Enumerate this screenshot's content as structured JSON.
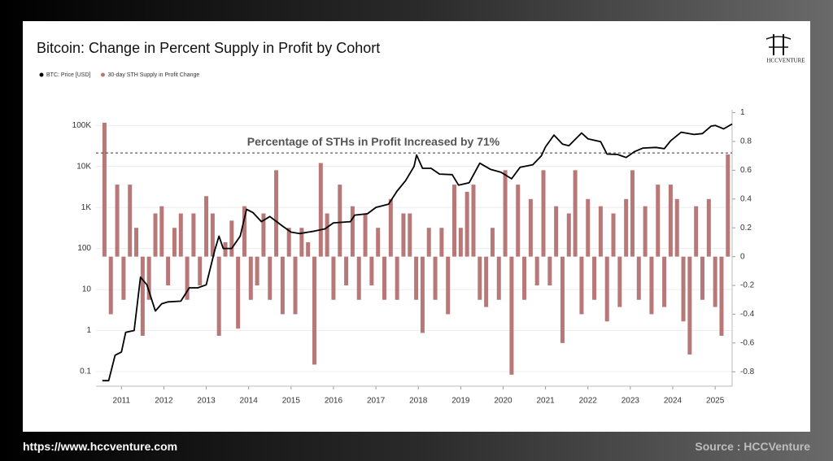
{
  "logo": "HCCVENTURE",
  "footer": {
    "url": "https://www.hccventure.com",
    "source": "Source : HCCVenture"
  },
  "chart_data": {
    "type": "combo",
    "title": "Bitcoin: Change in Percent Supply in Profit by Cohort",
    "annotation": "Percentage of STHs in Profit Increased by 71%",
    "reference_line": {
      "value": 0.72,
      "axis": "y2"
    },
    "legend": "top-left",
    "grid": true,
    "ylog": true,
    "xlim": [
      2010.4,
      2025.4
    ],
    "xticks": [
      2011,
      2012,
      2013,
      2014,
      2015,
      2016,
      2017,
      2018,
      2019,
      2020,
      2021,
      2022,
      2023,
      2024,
      2025
    ],
    "ylim": [
      0.044,
      240000
    ],
    "yticks": [
      0.1,
      1,
      10,
      100,
      {
        "value": 1000,
        "label": "1K"
      },
      {
        "value": 10000,
        "label": "10K"
      },
      {
        "value": 100000,
        "label": "100K"
      }
    ],
    "y2lim": [
      -0.9,
      1.02
    ],
    "y2ticks": [
      -0.8,
      -0.6,
      -0.4,
      -0.2,
      0,
      0.2,
      0.4,
      0.6,
      0.8,
      1
    ],
    "series": [
      {
        "name": "BTC: Price [USD]",
        "type": "line",
        "color": "#000000",
        "x": [
          2010.55,
          2010.7,
          2010.85,
          2011.0,
          2011.1,
          2011.3,
          2011.45,
          2011.6,
          2011.8,
          2011.95,
          2012.1,
          2012.4,
          2012.6,
          2012.8,
          2013.0,
          2013.2,
          2013.3,
          2013.4,
          2013.6,
          2013.8,
          2013.95,
          2014.1,
          2014.3,
          2014.5,
          2014.8,
          2015.0,
          2015.2,
          2015.5,
          2015.8,
          2016.0,
          2016.4,
          2016.5,
          2016.8,
          2017.0,
          2017.3,
          2017.5,
          2017.7,
          2017.9,
          2017.96,
          2018.1,
          2018.3,
          2018.5,
          2018.8,
          2018.95,
          2019.2,
          2019.45,
          2019.7,
          2019.95,
          2020.2,
          2020.4,
          2020.7,
          2020.9,
          2021.0,
          2021.2,
          2021.4,
          2021.55,
          2021.85,
          2022.0,
          2022.3,
          2022.45,
          2022.7,
          2022.9,
          2023.1,
          2023.3,
          2023.6,
          2023.8,
          2023.95,
          2024.2,
          2024.5,
          2024.7,
          2024.9,
          2025.0,
          2025.2,
          2025.4
        ],
        "values": [
          0.06,
          0.06,
          0.25,
          0.3,
          0.9,
          1.0,
          20,
          13,
          3,
          4.5,
          5,
          5.2,
          11,
          11,
          13,
          90,
          200,
          100,
          100,
          200,
          900,
          750,
          450,
          600,
          350,
          250,
          230,
          260,
          300,
          420,
          450,
          650,
          700,
          1000,
          1200,
          2500,
          4500,
          10000,
          19000,
          9000,
          9000,
          6500,
          6300,
          3500,
          4000,
          12000,
          8500,
          7200,
          5000,
          9500,
          11000,
          18000,
          30000,
          58000,
          35000,
          32000,
          65000,
          47000,
          40000,
          20000,
          19500,
          16500,
          23000,
          28000,
          29000,
          27000,
          42000,
          68000,
          60000,
          63000,
          95000,
          100000,
          82000,
          108000
        ]
      },
      {
        "name": "30-day STH Supply in Profit Change",
        "type": "bar",
        "axis": "y2",
        "color": "#b87878",
        "x": [
          2010.6,
          2010.75,
          2010.9,
          2011.05,
          2011.2,
          2011.35,
          2011.5,
          2011.65,
          2011.8,
          2011.95,
          2012.1,
          2012.25,
          2012.4,
          2012.55,
          2012.7,
          2012.85,
          2013.0,
          2013.15,
          2013.3,
          2013.45,
          2013.6,
          2013.75,
          2013.9,
          2014.05,
          2014.2,
          2014.35,
          2014.5,
          2014.65,
          2014.8,
          2014.95,
          2015.1,
          2015.25,
          2015.4,
          2015.55,
          2015.7,
          2015.85,
          2016.0,
          2016.15,
          2016.3,
          2016.45,
          2016.6,
          2016.75,
          2016.9,
          2017.05,
          2017.2,
          2017.35,
          2017.5,
          2017.65,
          2017.8,
          2017.95,
          2018.1,
          2018.25,
          2018.4,
          2018.55,
          2018.7,
          2018.85,
          2019.0,
          2019.15,
          2019.3,
          2019.45,
          2019.6,
          2019.75,
          2019.9,
          2020.05,
          2020.2,
          2020.35,
          2020.5,
          2020.65,
          2020.8,
          2020.95,
          2021.1,
          2021.25,
          2021.4,
          2021.55,
          2021.7,
          2021.85,
          2022.0,
          2022.15,
          2022.3,
          2022.45,
          2022.6,
          2022.75,
          2022.9,
          2023.05,
          2023.2,
          2023.35,
          2023.5,
          2023.65,
          2023.8,
          2023.95,
          2024.1,
          2024.25,
          2024.4,
          2024.55,
          2024.7,
          2024.85,
          2025.0,
          2025.15,
          2025.3
        ],
        "values": [
          0.93,
          -0.4,
          0.5,
          -0.3,
          0.5,
          0.2,
          -0.55,
          -0.3,
          0.3,
          0.35,
          -0.2,
          0.2,
          0.3,
          -0.3,
          0.3,
          -0.2,
          0.42,
          0.3,
          -0.55,
          0.1,
          0.25,
          -0.5,
          0.35,
          -0.3,
          -0.2,
          0.3,
          -0.3,
          0.6,
          -0.4,
          0.2,
          -0.4,
          0.2,
          0.1,
          -0.75,
          0.65,
          0.3,
          -0.3,
          0.5,
          -0.2,
          0.35,
          -0.3,
          0.3,
          -0.2,
          0.2,
          -0.3,
          0.4,
          -0.3,
          0.3,
          0.3,
          -0.3,
          -0.53,
          0.2,
          -0.3,
          0.2,
          -0.4,
          0.5,
          0.2,
          0.45,
          0.5,
          -0.3,
          -0.35,
          0.2,
          -0.3,
          0.6,
          -0.82,
          0.5,
          -0.3,
          0.4,
          -0.2,
          0.6,
          -0.2,
          0.35,
          -0.6,
          0.3,
          0.6,
          -0.4,
          0.4,
          -0.3,
          0.35,
          -0.45,
          0.3,
          -0.35,
          0.4,
          0.6,
          -0.3,
          0.35,
          -0.4,
          0.5,
          -0.35,
          0.5,
          0.4,
          -0.45,
          -0.68,
          0.35,
          -0.3,
          0.4,
          -0.35,
          -0.55,
          0.71
        ]
      }
    ]
  }
}
